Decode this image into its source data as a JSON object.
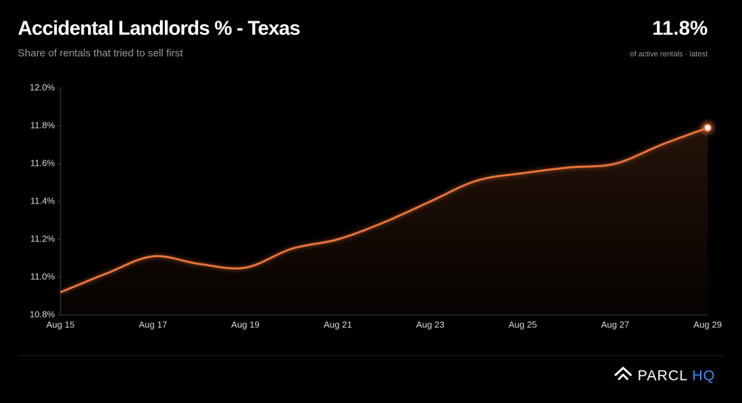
{
  "chart_data": {
    "type": "line",
    "title": "Accidental Landlords % - Texas",
    "subtitle": "Share of rentals that tried to sell first",
    "kpi": {
      "value": "11.8%",
      "caption": "of active rentals · latest"
    },
    "categories": [
      "Aug 15",
      null,
      "Aug 17",
      null,
      "Aug 19",
      null,
      "Aug 21",
      null,
      "Aug 23",
      null,
      "Aug 25",
      null,
      "Aug 27",
      null,
      "Aug 29"
    ],
    "values": [
      10.92,
      11.02,
      11.11,
      11.07,
      11.05,
      11.15,
      11.2,
      11.29,
      11.4,
      11.51,
      11.55,
      11.58,
      11.6,
      11.7,
      11.79
    ],
    "color": "#e8733a",
    "ylim": [
      10.8,
      12.0
    ],
    "yticks": [
      {
        "value": 10.8,
        "label": "10.8%"
      },
      {
        "value": 11.0,
        "label": "11.0%"
      },
      {
        "value": 11.2,
        "label": "11.2%"
      },
      {
        "value": 11.4,
        "label": "11.4%"
      },
      {
        "value": 11.6,
        "label": "11.6%"
      },
      {
        "value": 11.8,
        "label": "11.8%"
      },
      {
        "value": 12.0,
        "label": "12.0%"
      }
    ],
    "grid": false
  },
  "footer": {
    "brand": "PARCL",
    "brand_accent": "HQ"
  }
}
